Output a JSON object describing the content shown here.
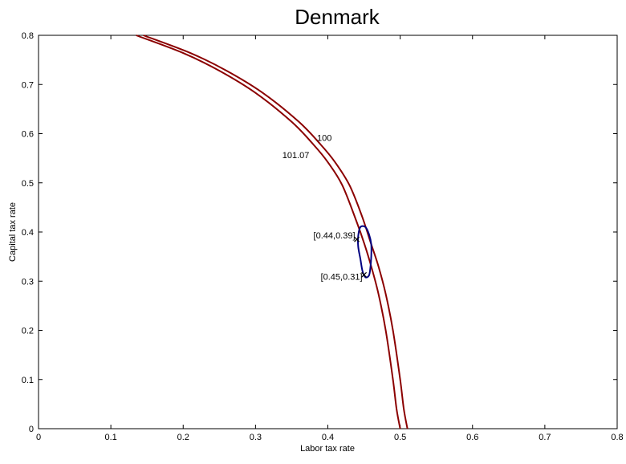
{
  "chart_data": {
    "type": "line",
    "title": "Denmark",
    "xlabel": "Labor tax rate",
    "ylabel": "Capital tax rate",
    "xlim": [
      0,
      0.8
    ],
    "ylim": [
      0,
      0.8
    ],
    "xticks": [
      "0",
      "0.1",
      "0.2",
      "0.3",
      "0.4",
      "0.5",
      "0.6",
      "0.7",
      "0.8"
    ],
    "yticks": [
      "0",
      "0.1",
      "0.2",
      "0.3",
      "0.4",
      "0.5",
      "0.6",
      "0.7",
      "0.8"
    ],
    "grid": false,
    "legend": "none",
    "series": [
      {
        "label": "100",
        "color": "#8B0000",
        "points": [
          [
            0.135,
            0.8
          ],
          [
            0.2,
            0.764
          ],
          [
            0.25,
            0.728
          ],
          [
            0.3,
            0.683
          ],
          [
            0.35,
            0.624
          ],
          [
            0.38,
            0.578
          ],
          [
            0.4,
            0.542
          ],
          [
            0.42,
            0.495
          ],
          [
            0.44,
            0.42
          ],
          [
            0.45,
            0.378
          ],
          [
            0.46,
            0.33
          ],
          [
            0.47,
            0.274
          ],
          [
            0.48,
            0.2
          ],
          [
            0.49,
            0.1
          ],
          [
            0.495,
            0.04
          ],
          [
            0.5,
            0.0
          ]
        ]
      },
      {
        "label": "101.07",
        "color": "#8B0000",
        "points": [
          [
            0.145,
            0.8
          ],
          [
            0.21,
            0.764
          ],
          [
            0.26,
            0.728
          ],
          [
            0.31,
            0.683
          ],
          [
            0.36,
            0.624
          ],
          [
            0.39,
            0.578
          ],
          [
            0.41,
            0.542
          ],
          [
            0.43,
            0.495
          ],
          [
            0.447,
            0.433
          ],
          [
            0.46,
            0.375
          ],
          [
            0.47,
            0.33
          ],
          [
            0.48,
            0.274
          ],
          [
            0.49,
            0.2
          ],
          [
            0.5,
            0.1
          ],
          [
            0.505,
            0.04
          ],
          [
            0.51,
            0.0
          ]
        ]
      },
      {
        "label": "",
        "color": "#000080",
        "closed": true,
        "points": [
          [
            0.445,
            0.41
          ],
          [
            0.452,
            0.41
          ],
          [
            0.457,
            0.395
          ],
          [
            0.46,
            0.375
          ],
          [
            0.46,
            0.35
          ],
          [
            0.459,
            0.33
          ],
          [
            0.457,
            0.312
          ],
          [
            0.452,
            0.308
          ],
          [
            0.448,
            0.32
          ],
          [
            0.445,
            0.345
          ],
          [
            0.442,
            0.37
          ],
          [
            0.442,
            0.392
          ]
        ]
      }
    ],
    "markers": [
      {
        "label": "[0.44,0.39]",
        "x": 0.44,
        "y": 0.385
      },
      {
        "label": "[0.45,0.31]",
        "x": 0.45,
        "y": 0.313
      }
    ],
    "annotations": [
      {
        "text": "100",
        "x": 0.385,
        "y": 0.585
      },
      {
        "text": "101.07",
        "x": 0.337,
        "y": 0.55
      }
    ]
  }
}
